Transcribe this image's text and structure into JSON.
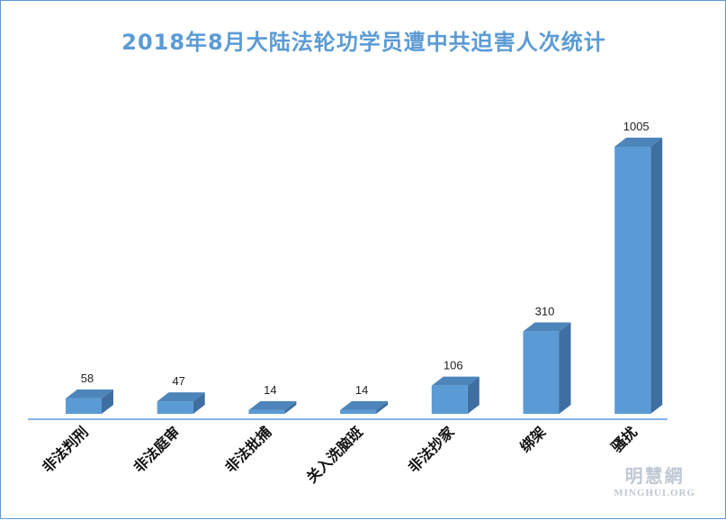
{
  "chart_data": {
    "type": "bar",
    "title": "2018年8月大陆法轮功学员遭中共迫害人次统计",
    "categories": [
      "非法判刑",
      "非法庭审",
      "非法批捕",
      "关入洗脑班",
      "非法抄家",
      "绑架",
      "骚扰"
    ],
    "values": [
      58,
      47,
      14,
      14,
      106,
      310,
      1005
    ],
    "ylim": [
      0,
      1005
    ],
    "grid": false,
    "legend": "none",
    "style": "3d-column"
  },
  "colors": {
    "front": "#5b9bd5",
    "side": "#3f6fa0",
    "top": "#4d85bb",
    "axis": "#5b9bd5",
    "title": "#5b9bd5"
  },
  "watermark": {
    "cn": "明慧網",
    "en": "MINGHUI.ORG"
  }
}
